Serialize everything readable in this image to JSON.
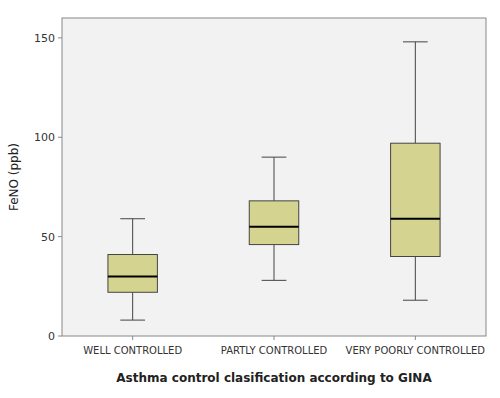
{
  "chart_data": {
    "type": "box",
    "categories": [
      "WELL CONTROLLED",
      "PARTLY CONTROLLED",
      "VERY POORLY CONTROLLED"
    ],
    "boxes": [
      {
        "whislo": 8,
        "q1": 22,
        "med": 30,
        "q3": 41,
        "whishi": 59
      },
      {
        "whislo": 28,
        "q1": 46,
        "med": 55,
        "q3": 68,
        "whishi": 90
      },
      {
        "whislo": 18,
        "q1": 40,
        "med": 59,
        "q3": 97,
        "whishi": 148
      }
    ],
    "xlabel": "Asthma control clasification according to GINA",
    "ylabel": "FeNO (ppb)",
    "ylim": [
      0,
      160
    ],
    "yticks": [
      0,
      50,
      100,
      150
    ],
    "color": "#d4d490",
    "grid": false
  }
}
